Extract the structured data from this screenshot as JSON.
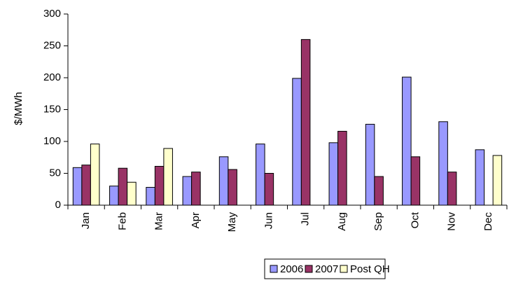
{
  "chart_data": {
    "type": "bar",
    "y_label": "$/MWh",
    "categories": [
      "Jan",
      "Feb",
      "Mar",
      "Apr",
      "May",
      "Jun",
      "Jul",
      "Aug",
      "Sep",
      "Oct",
      "Nov",
      "Dec"
    ],
    "series": [
      {
        "name": "2006",
        "color": "#9999ff",
        "values": [
          59,
          30,
          28,
          45,
          76,
          96,
          199,
          98,
          127,
          201,
          131,
          87
        ]
      },
      {
        "name": "2007",
        "color": "#993366",
        "values": [
          63,
          58,
          61,
          52,
          56,
          50,
          260,
          116,
          45,
          76,
          52,
          null
        ]
      },
      {
        "name": "Post QH",
        "color": "#ffffcc",
        "values": [
          96,
          36,
          89,
          null,
          null,
          null,
          null,
          null,
          null,
          null,
          null,
          78
        ]
      }
    ],
    "ylim": [
      0,
      300
    ],
    "yticks": [
      0,
      50,
      100,
      150,
      200,
      250,
      300
    ],
    "grid": false,
    "legend": "bottom"
  }
}
